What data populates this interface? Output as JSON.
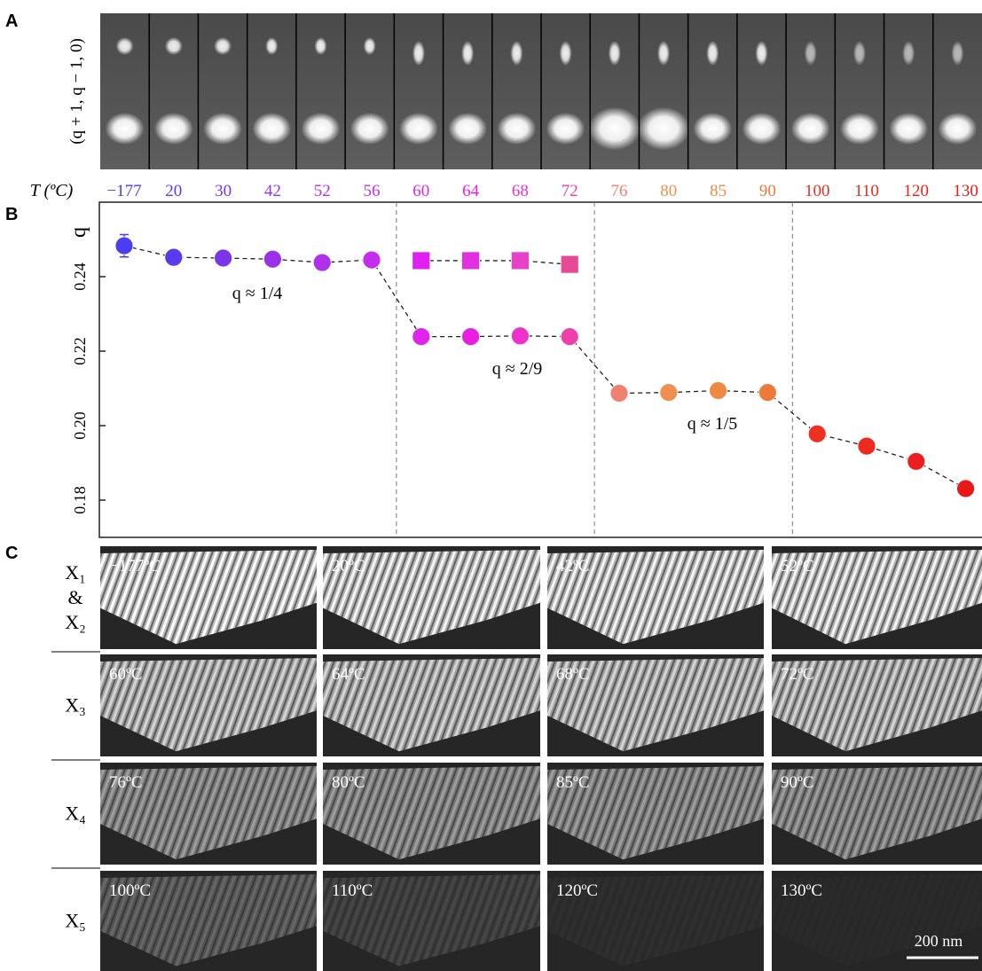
{
  "panel_a": {
    "label": "A",
    "axis_label": "(q + 1, q − 1, 0)"
  },
  "chart_data": {
    "type": "line",
    "panel_label": "B",
    "x_label": "T (ºC)",
    "y_label": "q",
    "categories": [
      "−177",
      "20",
      "30",
      "42",
      "52",
      "56",
      "60",
      "64",
      "68",
      "72",
      "76",
      "80",
      "85",
      "90",
      "100",
      "110",
      "120",
      "130"
    ],
    "category_colors": [
      "#4b3df0",
      "#5a3bea",
      "#7a35e6",
      "#9a33e8",
      "#b030ec",
      "#c42cee",
      "#e024ee",
      "#e81fe0",
      "#ee30cc",
      "#ee40a8",
      "#f08070",
      "#f09050",
      "#ef8a45",
      "#ee7a3a",
      "#ee3020",
      "#ec2a20",
      "#ea2020",
      "#e81818"
    ],
    "series": [
      {
        "marker": "circle",
        "values": [
          0.2483,
          0.2452,
          0.245,
          0.2447,
          0.2438,
          0.2445,
          0.2239,
          0.2239,
          0.2241,
          0.2239,
          0.2087,
          0.2089,
          0.2094,
          0.2089,
          0.1978,
          0.1945,
          0.1904,
          0.1831
        ],
        "errors": [
          0.003,
          null,
          null,
          null,
          null,
          null,
          null,
          null,
          null,
          null,
          null,
          null,
          null,
          null,
          null,
          null,
          null,
          null
        ],
        "colors": [
          "#4b3df0",
          "#5a3bea",
          "#7a35e6",
          "#9a33e8",
          "#b030ec",
          "#c42cee",
          "#e024ee",
          "#e81fe0",
          "#ee30cc",
          "#ee40a8",
          "#f08070",
          "#f09050",
          "#ef8a45",
          "#ee7a3a",
          "#ee3020",
          "#ec2a20",
          "#ea2020",
          "#e81818"
        ]
      },
      {
        "marker": "square",
        "values": [
          null,
          null,
          null,
          null,
          null,
          null,
          0.2443,
          0.2443,
          0.2443,
          0.2433,
          null,
          null,
          null,
          null,
          null,
          null,
          null,
          null
        ],
        "colors": [
          null,
          null,
          null,
          null,
          null,
          null,
          "#e020f0",
          "#e030e0",
          "#e840c8",
          "#e84898",
          null,
          null,
          null,
          null,
          null,
          null,
          null,
          null
        ]
      }
    ],
    "ylim": [
      0.17,
      0.26
    ],
    "yticks": [
      0.18,
      {
        "value": 0.2,
        "label": "0.20"
      },
      0.22,
      0.24
    ],
    "annotations": [
      "q ≈ 1/4",
      "q ≈ 2/9",
      "q ≈ 1/5"
    ]
  },
  "panel_c": {
    "label": "C",
    "scale_bar": "200 nm",
    "rows": [
      {
        "label_lines": [
          "X₁",
          "&",
          "X₂"
        ],
        "images": [
          "−177ºC",
          "20ºC",
          "42ºC",
          "52ºC"
        ]
      },
      {
        "label_lines": [
          "X₃"
        ],
        "images": [
          "60ºC",
          "64ºC",
          "68ºC",
          "72ºC"
        ]
      },
      {
        "label_lines": [
          "X₄"
        ],
        "images": [
          "76ºC",
          "80ºC",
          "85ºC",
          "90ºC"
        ]
      },
      {
        "label_lines": [
          "X₅"
        ],
        "images": [
          "100ºC",
          "110ºC",
          "120ºC",
          "130ºC"
        ]
      }
    ]
  }
}
